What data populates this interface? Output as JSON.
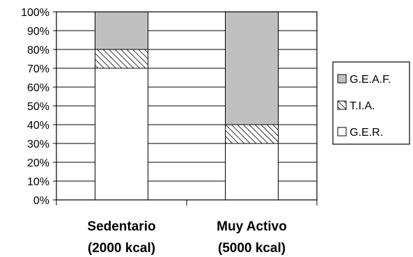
{
  "chart_data": {
    "type": "bar",
    "stacked": true,
    "percent_stacked": true,
    "categories": [
      "Sedentario (2000 kcal)",
      "Muy Activo (5000 kcal)"
    ],
    "category_lines": [
      [
        "Sedentario",
        "(2000 kcal)"
      ],
      [
        "Muy Activo",
        "(5000 kcal)"
      ]
    ],
    "series": [
      {
        "name": "G.E.R.",
        "values": [
          70,
          30
        ],
        "fill": "#ffffff"
      },
      {
        "name": "T.I.A.",
        "values": [
          10,
          10
        ],
        "fill": "hatch"
      },
      {
        "name": "G.E.A.F.",
        "values": [
          20,
          60
        ],
        "fill": "#c0c0c0"
      }
    ],
    "legend_order": [
      "G.E.A.F.",
      "T.I.A.",
      "G.E.R."
    ],
    "y_ticks": [
      "0%",
      "10%",
      "20%",
      "30%",
      "40%",
      "50%",
      "60%",
      "70%",
      "80%",
      "90%",
      "100%"
    ],
    "ylim": [
      0,
      100
    ],
    "grid": true,
    "legend_position": "right",
    "title": "",
    "xlabel": "",
    "ylabel": ""
  }
}
